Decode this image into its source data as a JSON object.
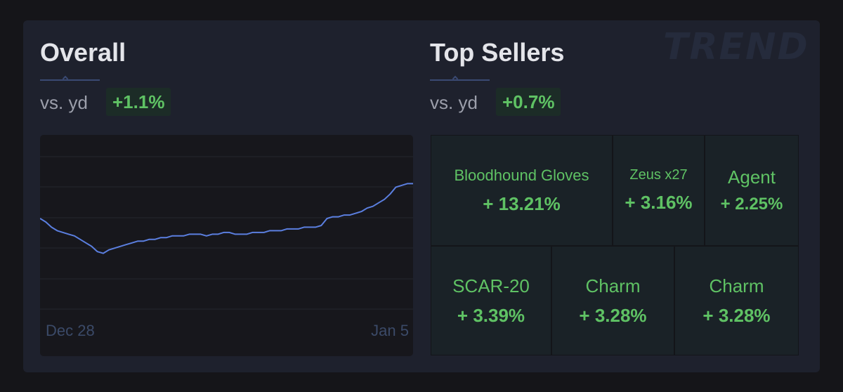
{
  "watermark": "TREND",
  "overall": {
    "title": "Overall",
    "vs_label": "vs. yd",
    "change": "+1.1%"
  },
  "top_sellers": {
    "title": "Top Sellers",
    "vs_label": "vs. yd",
    "change": "+0.7%",
    "items": [
      {
        "name": "Bloodhound Gloves",
        "change": "+ 13.21%"
      },
      {
        "name": "Zeus x27",
        "change": "+ 3.16%"
      },
      {
        "name": "Agent",
        "change": "+ 2.25%"
      },
      {
        "name": "SCAR-20",
        "change": "+ 3.39%"
      },
      {
        "name": "Charm",
        "change": "+ 3.28%"
      },
      {
        "name": "Charm",
        "change": "+ 3.28%"
      }
    ]
  },
  "colors": {
    "line": "#5b7fe0",
    "positive": "#5fc264",
    "badge_bg": "#1c2c27"
  },
  "chart_data": {
    "type": "line",
    "xlabel": "",
    "ylabel": "",
    "x_tick_labels": [
      "Dec 28",
      "Jan 5"
    ],
    "grid": true,
    "ylim": [
      0,
      100
    ],
    "series": [
      {
        "values": [
          52,
          50,
          47,
          45,
          44,
          43,
          42,
          40,
          38,
          36,
          33,
          32,
          34,
          35,
          36,
          37,
          38,
          39,
          39,
          40,
          40,
          41,
          41,
          42,
          42,
          42,
          43,
          43,
          43,
          42,
          43,
          43,
          44,
          44,
          43,
          43,
          43,
          44,
          44,
          44,
          45,
          45,
          45,
          46,
          46,
          46,
          47,
          47,
          47,
          48,
          52,
          53,
          53,
          54,
          54,
          55,
          56,
          58,
          59,
          61,
          63,
          66,
          70,
          71,
          72,
          72
        ]
      }
    ]
  }
}
